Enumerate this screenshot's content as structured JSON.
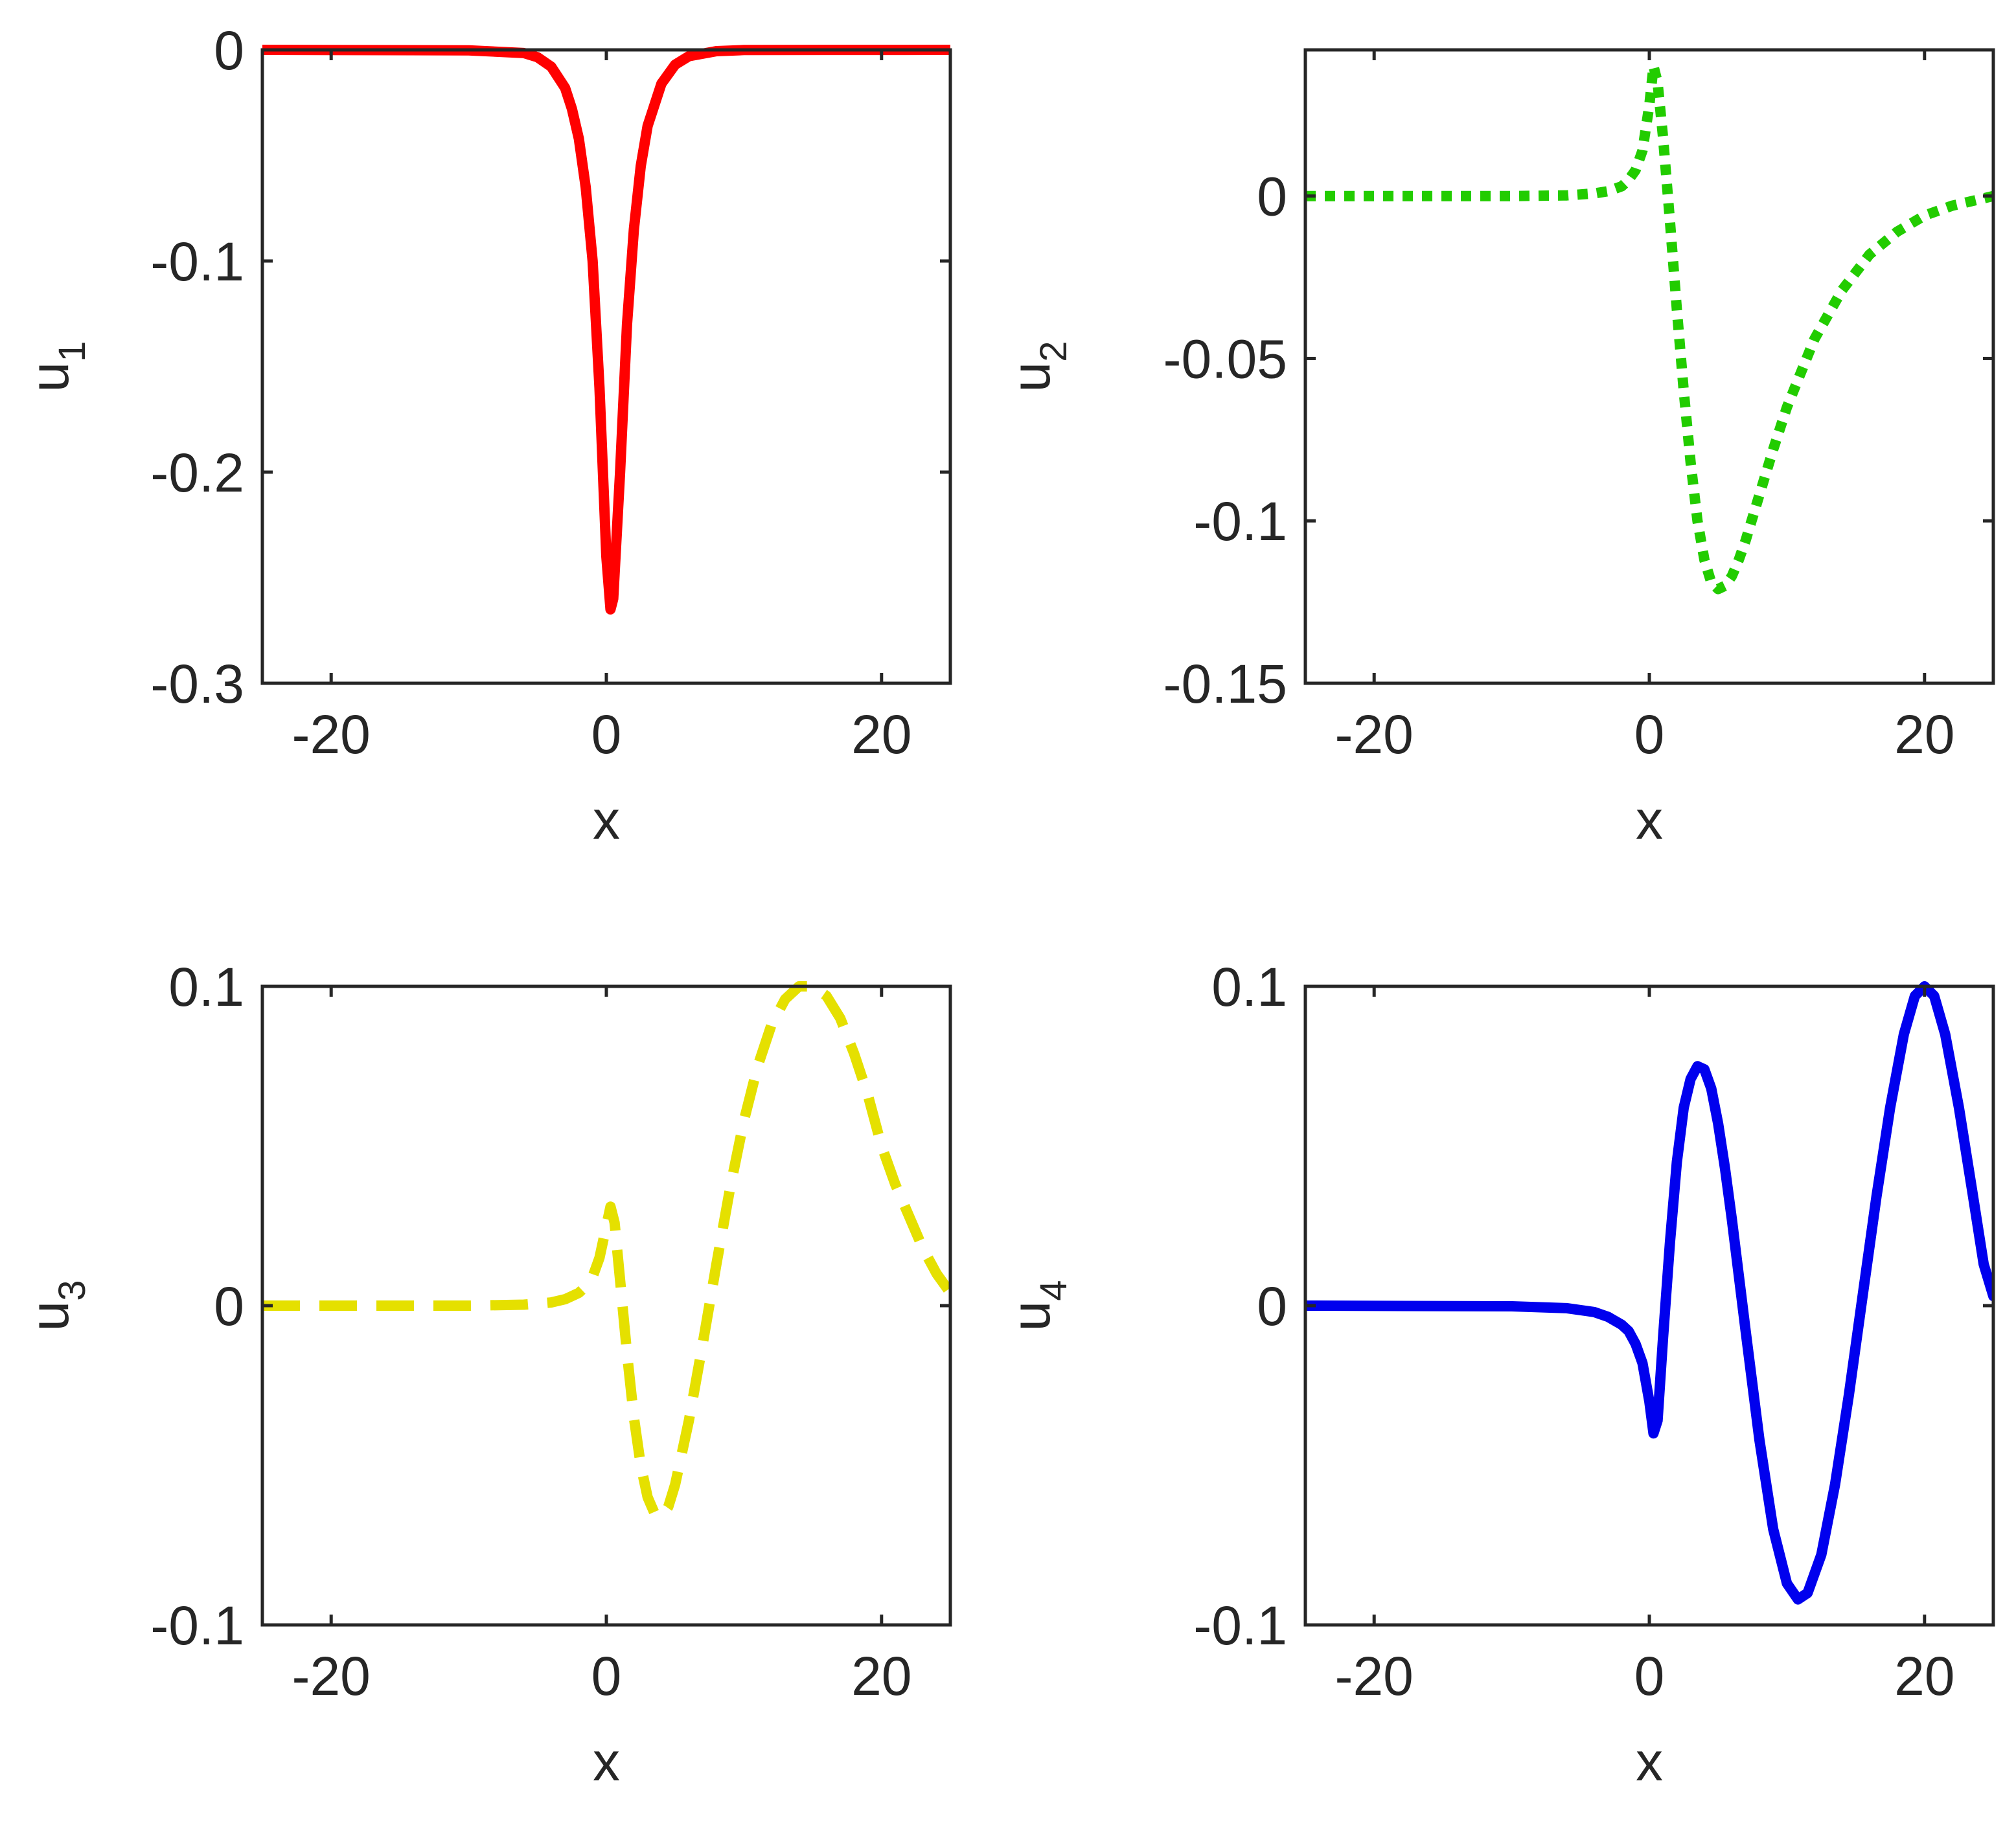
{
  "chart_data": [
    {
      "type": "line",
      "panel": "top-left",
      "xlabel": "x",
      "ylabel": {
        "base": "u",
        "sub": "1"
      },
      "xlim": [
        -25,
        25
      ],
      "ylim": [
        -0.3,
        0
      ],
      "xticks": [
        -20,
        0,
        20
      ],
      "xtick_labels": [
        "-20",
        "0",
        "20"
      ],
      "yticks": [
        0,
        -0.1,
        -0.2,
        -0.3
      ],
      "ytick_labels": [
        "0",
        "-0.1",
        "-0.2",
        "-0.3"
      ],
      "grid": false,
      "series": [
        {
          "color": "#ff0000",
          "style": "solid",
          "x": [
            -25,
            -10,
            -6,
            -5,
            -4,
            -3,
            -2.5,
            -2,
            -1.5,
            -1,
            -0.5,
            0,
            0.3,
            0.5,
            1,
            1.5,
            2,
            2.5,
            3,
            4,
            5,
            6,
            8,
            10,
            25
          ],
          "y": [
            0,
            -0.0002,
            -0.0015,
            -0.0035,
            -0.008,
            -0.018,
            -0.028,
            -0.042,
            -0.065,
            -0.1,
            -0.16,
            -0.24,
            -0.265,
            -0.26,
            -0.2,
            -0.13,
            -0.085,
            -0.055,
            -0.036,
            -0.016,
            -0.007,
            -0.003,
            -0.0006,
            -0.0001,
            0
          ]
        }
      ]
    },
    {
      "type": "line",
      "panel": "top-right",
      "xlabel": "x",
      "ylabel": {
        "base": "u",
        "sub": "2"
      },
      "xlim": [
        -25,
        25
      ],
      "ylim": [
        -0.15,
        0.045
      ],
      "xticks": [
        -20,
        0,
        20
      ],
      "xtick_labels": [
        "-20",
        "0",
        "20"
      ],
      "yticks": [
        0,
        -0.05,
        -0.1,
        -0.15
      ],
      "ytick_labels": [
        "0",
        "-0.05",
        "-0.1",
        "-0.15"
      ],
      "grid": false,
      "series": [
        {
          "color": "#22cc00",
          "style": "dotted",
          "x": [
            -25,
            -10,
            -6,
            -4,
            -3,
            -2,
            -1.5,
            -1,
            -0.5,
            0,
            0.3,
            0.6,
            1,
            1.5,
            2,
            2.5,
            3,
            3.5,
            4,
            4.5,
            5,
            5.5,
            6,
            6.5,
            7,
            8,
            9,
            10,
            12,
            14,
            16,
            18,
            20,
            22,
            25
          ],
          "y": [
            0,
            0,
            0.0002,
            0.0008,
            0.0015,
            0.003,
            0.005,
            0.008,
            0.014,
            0.028,
            0.04,
            0.035,
            0.018,
            -0.008,
            -0.035,
            -0.06,
            -0.082,
            -0.1,
            -0.112,
            -0.119,
            -0.121,
            -0.12,
            -0.117,
            -0.112,
            -0.106,
            -0.092,
            -0.078,
            -0.065,
            -0.044,
            -0.029,
            -0.018,
            -0.011,
            -0.006,
            -0.003,
            0
          ]
        }
      ]
    },
    {
      "type": "line",
      "panel": "bottom-left",
      "xlabel": "x",
      "ylabel": {
        "base": "u",
        "sub": "3"
      },
      "xlim": [
        -25,
        25
      ],
      "ylim": [
        -0.1,
        0.1
      ],
      "xticks": [
        -20,
        0,
        20
      ],
      "xtick_labels": [
        "-20",
        "0",
        "20"
      ],
      "yticks": [
        0.1,
        0,
        -0.1
      ],
      "ytick_labels": [
        "0.1",
        "0",
        "-0.1"
      ],
      "grid": false,
      "series": [
        {
          "color": "#e5e000",
          "style": "dashed",
          "x": [
            -25,
            -10,
            -6,
            -4,
            -3,
            -2,
            -1.5,
            -1,
            -0.5,
            0,
            0.3,
            0.6,
            1,
            1.5,
            2,
            2.5,
            3,
            3.5,
            4,
            4.5,
            5,
            6,
            7,
            8,
            9,
            10,
            11,
            12,
            13,
            14,
            15,
            16,
            17,
            18,
            19,
            20,
            21,
            22,
            23,
            24,
            25
          ],
          "y": [
            0,
            0,
            0.0003,
            0.001,
            0.002,
            0.004,
            0.006,
            0.009,
            0.015,
            0.025,
            0.031,
            0.026,
            0.008,
            -0.015,
            -0.035,
            -0.05,
            -0.06,
            -0.065,
            -0.066,
            -0.063,
            -0.056,
            -0.036,
            -0.012,
            0.013,
            0.037,
            0.058,
            0.075,
            0.088,
            0.096,
            0.1,
            0.1,
            0.097,
            0.09,
            0.079,
            0.066,
            0.05,
            0.038,
            0.028,
            0.018,
            0.01,
            0.004
          ]
        }
      ]
    },
    {
      "type": "line",
      "panel": "bottom-right",
      "xlabel": "x",
      "ylabel": {
        "base": "u",
        "sub": "4"
      },
      "xlim": [
        -25,
        25
      ],
      "ylim": [
        -0.1,
        0.1
      ],
      "xticks": [
        -20,
        0,
        20
      ],
      "xtick_labels": [
        "-20",
        "0",
        "20"
      ],
      "yticks": [
        0.1,
        0,
        -0.1
      ],
      "ytick_labels": [
        "0.1",
        "0",
        "-0.1"
      ],
      "grid": false,
      "series": [
        {
          "color": "#0000ee",
          "style": "solid",
          "x": [
            -25,
            -10,
            -6,
            -4,
            -3,
            -2,
            -1.5,
            -1,
            -0.5,
            0,
            0.3,
            0.6,
            1,
            1.5,
            2,
            2.5,
            3,
            3.5,
            4,
            4.5,
            5,
            5.5,
            6,
            7,
            8,
            9,
            10,
            10.8,
            11.5,
            12.5,
            13.5,
            14.5,
            15.5,
            16.5,
            17.5,
            18.5,
            19.3,
            20,
            20.7,
            21.5,
            22.5,
            23.5,
            24.3,
            25
          ],
          "y": [
            0,
            -0.0002,
            -0.0008,
            -0.002,
            -0.0035,
            -0.006,
            -0.008,
            -0.012,
            -0.018,
            -0.03,
            -0.04,
            -0.036,
            -0.01,
            0.02,
            0.045,
            0.062,
            0.071,
            0.075,
            0.074,
            0.068,
            0.057,
            0.043,
            0.027,
            -0.008,
            -0.042,
            -0.07,
            -0.087,
            -0.092,
            -0.09,
            -0.078,
            -0.056,
            -0.028,
            0.003,
            0.034,
            0.062,
            0.085,
            0.097,
            0.1,
            0.097,
            0.085,
            0.062,
            0.035,
            0.013,
            0.003
          ]
        }
      ]
    }
  ]
}
